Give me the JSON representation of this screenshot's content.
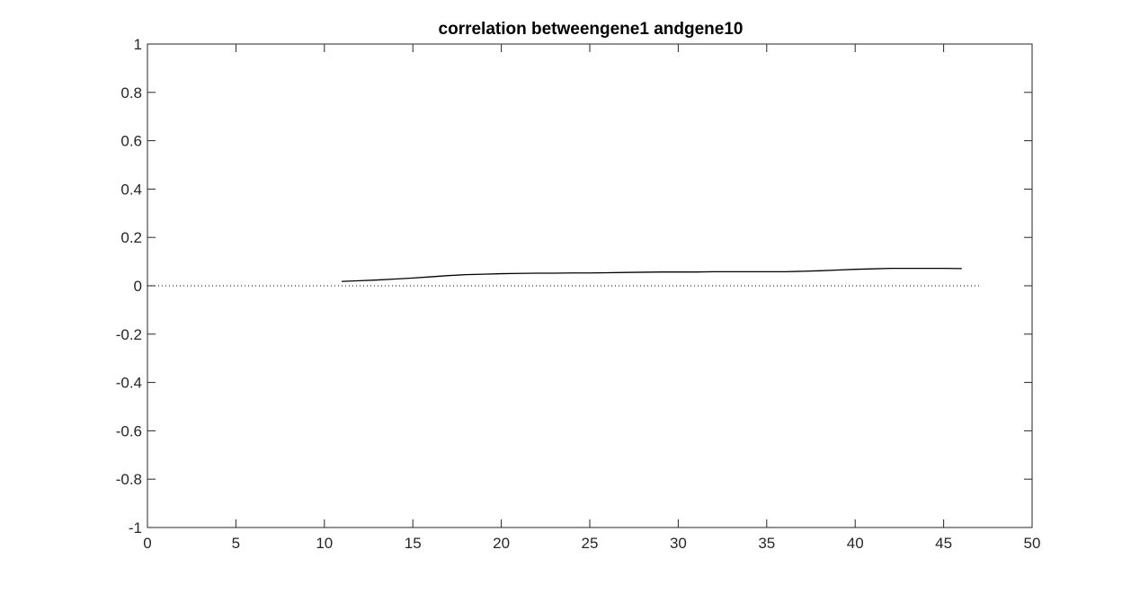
{
  "chart_data": {
    "type": "line",
    "title": "correlation betweengene1 andgene10",
    "xlabel": "",
    "ylabel": "",
    "xlim": [
      0,
      50
    ],
    "ylim": [
      -1,
      1
    ],
    "x_ticks": [
      0,
      5,
      10,
      15,
      20,
      25,
      30,
      35,
      40,
      45,
      50
    ],
    "y_ticks": [
      -1,
      -0.8,
      -0.6,
      -0.4,
      -0.2,
      0,
      0.2,
      0.4,
      0.6,
      0.8,
      1
    ],
    "x_tick_labels": [
      "0",
      "5",
      "10",
      "15",
      "20",
      "25",
      "30",
      "35",
      "40",
      "45",
      "50"
    ],
    "y_tick_labels": [
      "-1",
      "-0.8",
      "-0.6",
      "-0.4",
      "-0.2",
      "0",
      "0.2",
      "0.4",
      "0.6",
      "0.8",
      "1"
    ],
    "grid": false,
    "box": true,
    "reference_line": {
      "y": 0,
      "x_range": [
        0,
        47
      ],
      "style": "dotted",
      "color": "#000000"
    },
    "series": [
      {
        "x": [
          11,
          12,
          13,
          14,
          15,
          16,
          17,
          18,
          19,
          20,
          21,
          22,
          23,
          24,
          25,
          26,
          27,
          28,
          29,
          30,
          31,
          32,
          33,
          34,
          35,
          36,
          37,
          38,
          39,
          40,
          41,
          42,
          43,
          44,
          45,
          46
        ],
        "values": [
          0.018,
          0.021,
          0.024,
          0.028,
          0.032,
          0.037,
          0.042,
          0.046,
          0.048,
          0.05,
          0.051,
          0.052,
          0.052,
          0.053,
          0.053,
          0.054,
          0.055,
          0.056,
          0.057,
          0.057,
          0.057,
          0.058,
          0.058,
          0.058,
          0.058,
          0.058,
          0.06,
          0.062,
          0.065,
          0.068,
          0.07,
          0.072,
          0.072,
          0.072,
          0.072,
          0.071
        ],
        "color": "#000000",
        "style": "solid"
      }
    ]
  }
}
